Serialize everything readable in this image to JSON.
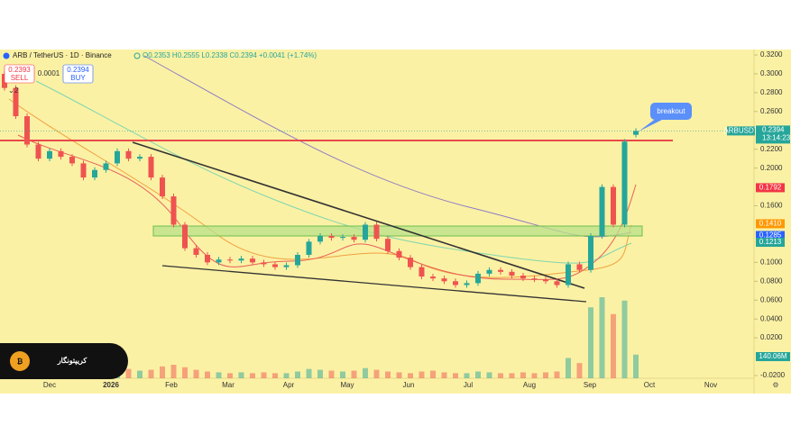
{
  "header": {
    "symbol": "ARB / TetherUS · 1D · Binance",
    "ohlc": "O0.2353 H0.2555 L0.2338 C0.2394 +0.0041 (+1.74%)",
    "sell_price": "0.2393",
    "sell_label": "SELL",
    "spread": "0.0001",
    "buy_price": "0.2394",
    "buy_label": "BUY",
    "indicator_count": "2"
  },
  "chart_data": {
    "type": "candlestick",
    "open": [
      0.3,
      0.285,
      0.255,
      0.225,
      0.21,
      0.218,
      0.212,
      0.205,
      0.19,
      0.198,
      0.205,
      0.218,
      0.21,
      0.212,
      0.19,
      0.17,
      0.14,
      0.115,
      0.108,
      0.1,
      0.103,
      0.102,
      0.104,
      0.1,
      0.098,
      0.095,
      0.097,
      0.108,
      0.122,
      0.128,
      0.126,
      0.127,
      0.124,
      0.14,
      0.125,
      0.112,
      0.105,
      0.095,
      0.085,
      0.083,
      0.08,
      0.076,
      0.078,
      0.088,
      0.092,
      0.09,
      0.086,
      0.083,
      0.082,
      0.08,
      0.076,
      0.098,
      0.092,
      0.128,
      0.18,
      0.14,
      0.2353
    ],
    "close": [
      0.285,
      0.255,
      0.225,
      0.21,
      0.218,
      0.212,
      0.205,
      0.19,
      0.198,
      0.205,
      0.218,
      0.21,
      0.212,
      0.19,
      0.17,
      0.14,
      0.115,
      0.108,
      0.1,
      0.103,
      0.102,
      0.104,
      0.1,
      0.098,
      0.095,
      0.097,
      0.108,
      0.122,
      0.128,
      0.126,
      0.127,
      0.124,
      0.14,
      0.125,
      0.112,
      0.105,
      0.095,
      0.085,
      0.083,
      0.08,
      0.076,
      0.078,
      0.088,
      0.092,
      0.09,
      0.086,
      0.083,
      0.082,
      0.08,
      0.076,
      0.098,
      0.092,
      0.128,
      0.18,
      0.14,
      0.228,
      0.2394
    ],
    "volume": [
      90,
      70,
      60,
      55,
      50,
      45,
      40,
      45,
      50,
      40,
      60,
      55,
      45,
      50,
      70,
      80,
      65,
      50,
      40,
      35,
      30,
      35,
      30,
      35,
      30,
      30,
      40,
      55,
      50,
      45,
      40,
      45,
      60,
      50,
      40,
      35,
      30,
      40,
      45,
      35,
      30,
      30,
      40,
      35,
      30,
      30,
      35,
      30,
      35,
      40,
      120,
      90,
      420,
      480,
      380,
      460,
      140.06
    ],
    "up_color": "#26a69a",
    "down_color": "#ef5350",
    "ylim": [
      -0.02,
      0.32
    ],
    "yticks": [
      {
        "value": 0.32,
        "label": "0.3200"
      },
      {
        "value": 0.3,
        "label": "0.3000"
      },
      {
        "value": 0.28,
        "label": "0.2800"
      },
      {
        "value": 0.26,
        "label": "0.2600"
      },
      {
        "value": 0.22,
        "label": "0.2200"
      },
      {
        "value": 0.2,
        "label": "0.2000"
      },
      {
        "value": 0.16,
        "label": "0.1600"
      },
      {
        "value": 0.1,
        "label": "0.1000"
      },
      {
        "value": 0.08,
        "label": "0.0800"
      },
      {
        "value": 0.06,
        "label": "0.0600"
      },
      {
        "value": 0.04,
        "label": "0.0400"
      },
      {
        "value": 0.02,
        "label": "0.0200"
      },
      {
        "value": -0.02,
        "label": "-0.0200"
      }
    ],
    "x_labels": [
      "Dec",
      "2026",
      "Feb",
      "Mar",
      "Apr",
      "May",
      "Jun",
      "Jul",
      "Aug",
      "Sep",
      "Oct",
      "Nov"
    ],
    "price_tags": [
      {
        "value": 0.1792,
        "label": "0.1792",
        "color": "#f23645"
      },
      {
        "value": 0.141,
        "label": "0.1410",
        "color": "#ff9800"
      },
      {
        "value": 0.1285,
        "label": "0.1285",
        "color": "#2962ff"
      },
      {
        "value": 0.1213,
        "label": "0.1213",
        "color": "#26a69a"
      }
    ],
    "last_tag": {
      "symbol": "ARBUSDT",
      "price": "0.2394",
      "countdown": "13:14:23",
      "color": "#26a69a"
    },
    "volume_label": "140.06M",
    "annotation": "breakout"
  },
  "logo": {
    "text": "کریپتونگار"
  }
}
